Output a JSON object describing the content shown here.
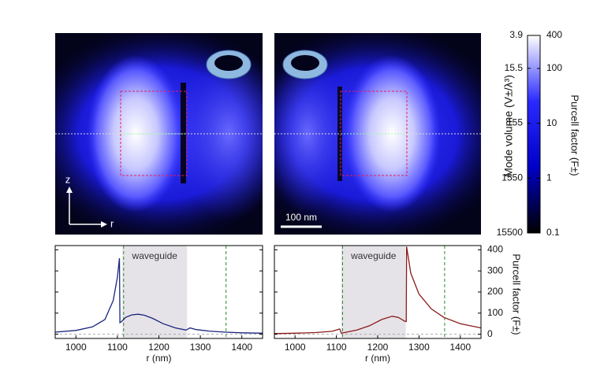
{
  "chart_data": [
    {
      "type": "colorbar",
      "ylabel": "Purcell factor (F±)",
      "y2label": "Mode volume (V±/λ³)",
      "ylim": [
        0.1,
        400
      ],
      "yticks": [
        0.1,
        1,
        10,
        100,
        400
      ],
      "log": true,
      "y2lim": [
        15500,
        3.9
      ],
      "y2ticks": [
        3.9,
        15.5,
        155,
        1550,
        15500
      ],
      "colormap": [
        "#000000",
        "#0000c8",
        "#2a2aff",
        "#ffffff"
      ]
    },
    {
      "type": "line",
      "xlabel": "r (nm)",
      "annotation": "waveguide",
      "shade": [
        1112,
        1268
      ],
      "vlines": [
        1115,
        1362
      ],
      "xlim": [
        950,
        1450
      ],
      "xticks": [
        1000,
        1100,
        1200,
        1300,
        1400
      ],
      "ylim": [
        -20,
        420
      ],
      "yticks": [
        0,
        100,
        200,
        300,
        400
      ],
      "ytick_labels": false,
      "x": [
        950,
        1000,
        1040,
        1070,
        1090,
        1100,
        1105,
        1106,
        1110,
        1120,
        1135,
        1150,
        1165,
        1185,
        1210,
        1240,
        1265,
        1268,
        1275,
        1290,
        1320,
        1360,
        1400,
        1450
      ],
      "series": [
        {
          "color": "#1a237e",
          "values": [
            10,
            18,
            35,
            70,
            160,
            270,
            360,
            55,
            60,
            80,
            92,
            95,
            90,
            75,
            50,
            30,
            20,
            22,
            30,
            22,
            15,
            10,
            7,
            5
          ]
        }
      ]
    },
    {
      "type": "line",
      "xlabel": "r (nm)",
      "ylabel": "Purcell factor (F±)",
      "annotation": "waveguide",
      "shade": [
        1112,
        1268
      ],
      "vlines": [
        1115,
        1362
      ],
      "xlim": [
        950,
        1450
      ],
      "xticks": [
        1000,
        1100,
        1200,
        1300,
        1400
      ],
      "ylim": [
        -20,
        420
      ],
      "yticks": [
        0,
        100,
        200,
        300,
        400
      ],
      "ytick_labels": true,
      "x": [
        950,
        1000,
        1050,
        1090,
        1100,
        1108,
        1112,
        1120,
        1150,
        1180,
        1210,
        1235,
        1250,
        1265,
        1269,
        1270,
        1280,
        1300,
        1330,
        1360,
        1400,
        1450
      ],
      "series": [
        {
          "color": "#8b1a1a",
          "values": [
            3,
            5,
            8,
            14,
            20,
            25,
            5,
            8,
            20,
            40,
            70,
            85,
            80,
            62,
            60,
            415,
            290,
            190,
            120,
            80,
            50,
            30
          ]
        }
      ]
    }
  ],
  "figure": {
    "axis_z": "z",
    "axis_r": "r",
    "scale_bar": "100 nm"
  }
}
